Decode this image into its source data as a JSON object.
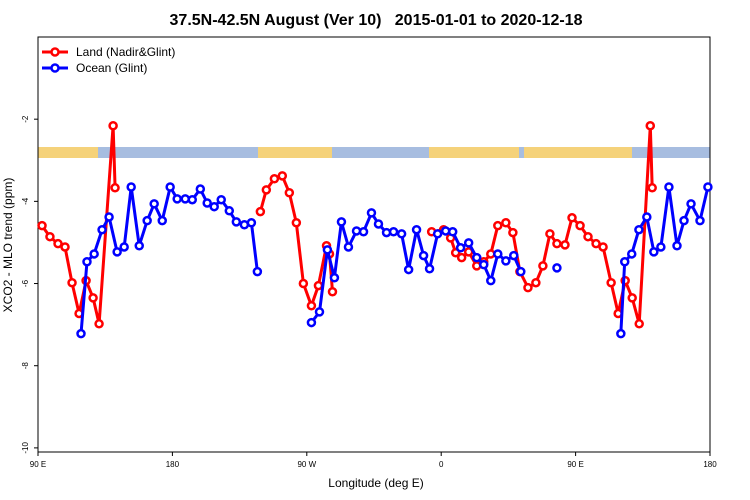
{
  "chart_data": {
    "type": "line",
    "title": "37.5N-42.5N August (Ver 10)   2015-01-01 to 2020-12-18",
    "x_label": "Longitude (deg E)",
    "y_label": "XCO2 - MLO trend (ppm)",
    "xlim": [
      90,
      540
    ],
    "ylim": [
      -10.1,
      0
    ],
    "xticks": [
      {
        "value": 90,
        "label": "90 E"
      },
      {
        "value": 180,
        "label": "180"
      },
      {
        "value": 270,
        "label": "90 W"
      },
      {
        "value": 360,
        "label": "0"
      },
      {
        "value": 450,
        "label": "90 E"
      },
      {
        "value": 540,
        "label": "180"
      }
    ],
    "yticks": [
      -10,
      -8,
      -6,
      -4,
      -2
    ],
    "legend_position": "upper left",
    "series": [
      {
        "name": "Land (Nadir&Glint)",
        "color": "#ff0000",
        "x": [
          92.7,
          98.0,
          103.4,
          108.1,
          112.8,
          117.5,
          122.2,
          126.9,
          130.9,
          140.3,
          141.6,
          null,
          238.9,
          242.9,
          248.3,
          253.6,
          258.3,
          263.0,
          267.7,
          273.1,
          277.8,
          283.2,
          285.2,
          287.2,
          null,
          353.6,
          361.6,
          366.3,
          369.7,
          373.7,
          378.4,
          383.8,
          388.5,
          393.2,
          397.9,
          403.3,
          408.0,
          412.7,
          418.1,
          423.4,
          428.1,
          432.8,
          437.5,
          442.9,
          447.6,
          453.0,
          458.3,
          463.7,
          468.4,
          473.8,
          478.5,
          483.2,
          487.9,
          492.6,
          500.0,
          501.3
        ],
        "values": [
          -4.59,
          -4.86,
          -5.03,
          -5.11,
          -5.98,
          -6.73,
          -5.93,
          -6.35,
          -6.98,
          -2.16,
          -3.67,
          null,
          -4.25,
          -3.72,
          -3.45,
          -3.38,
          -3.79,
          -4.52,
          -6.0,
          -6.54,
          -6.05,
          -5.08,
          -5.28,
          -6.2,
          null,
          -4.74,
          -4.69,
          -4.89,
          -5.25,
          -5.37,
          -5.23,
          -5.57,
          -5.47,
          -5.28,
          -4.59,
          -4.52,
          -4.76,
          -5.71,
          -6.1,
          -5.98,
          -5.57,
          -4.79,
          -5.03,
          -5.06,
          -4.4,
          -4.59,
          -4.86,
          -5.03,
          -5.11,
          -5.98,
          -6.73,
          -5.93,
          -6.35,
          -6.98,
          -2.16,
          -3.67
        ]
      },
      {
        "name": "Ocean (Glint)",
        "color": "#0000ff",
        "x": [
          118.8,
          122.8,
          127.6,
          132.9,
          137.6,
          143.0,
          147.7,
          152.4,
          157.8,
          163.1,
          167.8,
          173.2,
          178.5,
          183.2,
          188.6,
          193.3,
          198.7,
          203.3,
          208.0,
          212.7,
          218.1,
          222.8,
          228.2,
          232.9,
          236.9,
          null,
          273.1,
          278.5,
          283.8,
          288.5,
          293.2,
          297.9,
          303.3,
          308.0,
          313.3,
          318.0,
          323.4,
          328.1,
          333.5,
          338.2,
          343.5,
          348.2,
          352.2,
          357.6,
          363.0,
          367.7,
          373.0,
          378.4,
          383.8,
          388.5,
          393.2,
          397.9,
          403.3,
          408.6,
          413.3,
          null,
          437.5,
          null,
          480.3,
          482.9,
          487.6,
          492.4,
          497.7,
          502.4,
          507.1,
          512.5,
          517.9,
          522.6,
          527.3,
          533.3,
          538.6
        ],
        "values": [
          -7.22,
          -5.47,
          -5.28,
          -4.69,
          -4.38,
          -5.23,
          -5.11,
          -3.65,
          -5.08,
          -4.47,
          -4.06,
          -4.47,
          -3.65,
          -3.94,
          -3.94,
          -3.96,
          -3.7,
          -4.04,
          -4.13,
          -3.96,
          -4.23,
          -4.5,
          -4.57,
          -4.52,
          -5.71,
          null,
          -6.95,
          -6.69,
          -5.18,
          -5.86,
          -4.5,
          -5.11,
          -4.72,
          -4.74,
          -4.28,
          -4.55,
          -4.76,
          -4.74,
          -4.79,
          -5.66,
          -4.69,
          -5.32,
          -5.64,
          -4.79,
          -4.72,
          -4.74,
          -5.13,
          -5.01,
          -5.37,
          -5.54,
          -5.93,
          -5.28,
          -5.45,
          -5.32,
          -5.71,
          null,
          -5.62,
          null,
          -7.22,
          -5.47,
          -5.28,
          -4.69,
          -4.38,
          -5.23,
          -5.11,
          -3.65,
          -5.08,
          -4.47,
          -4.06,
          -4.47,
          -3.65
        ]
      }
    ]
  }
}
